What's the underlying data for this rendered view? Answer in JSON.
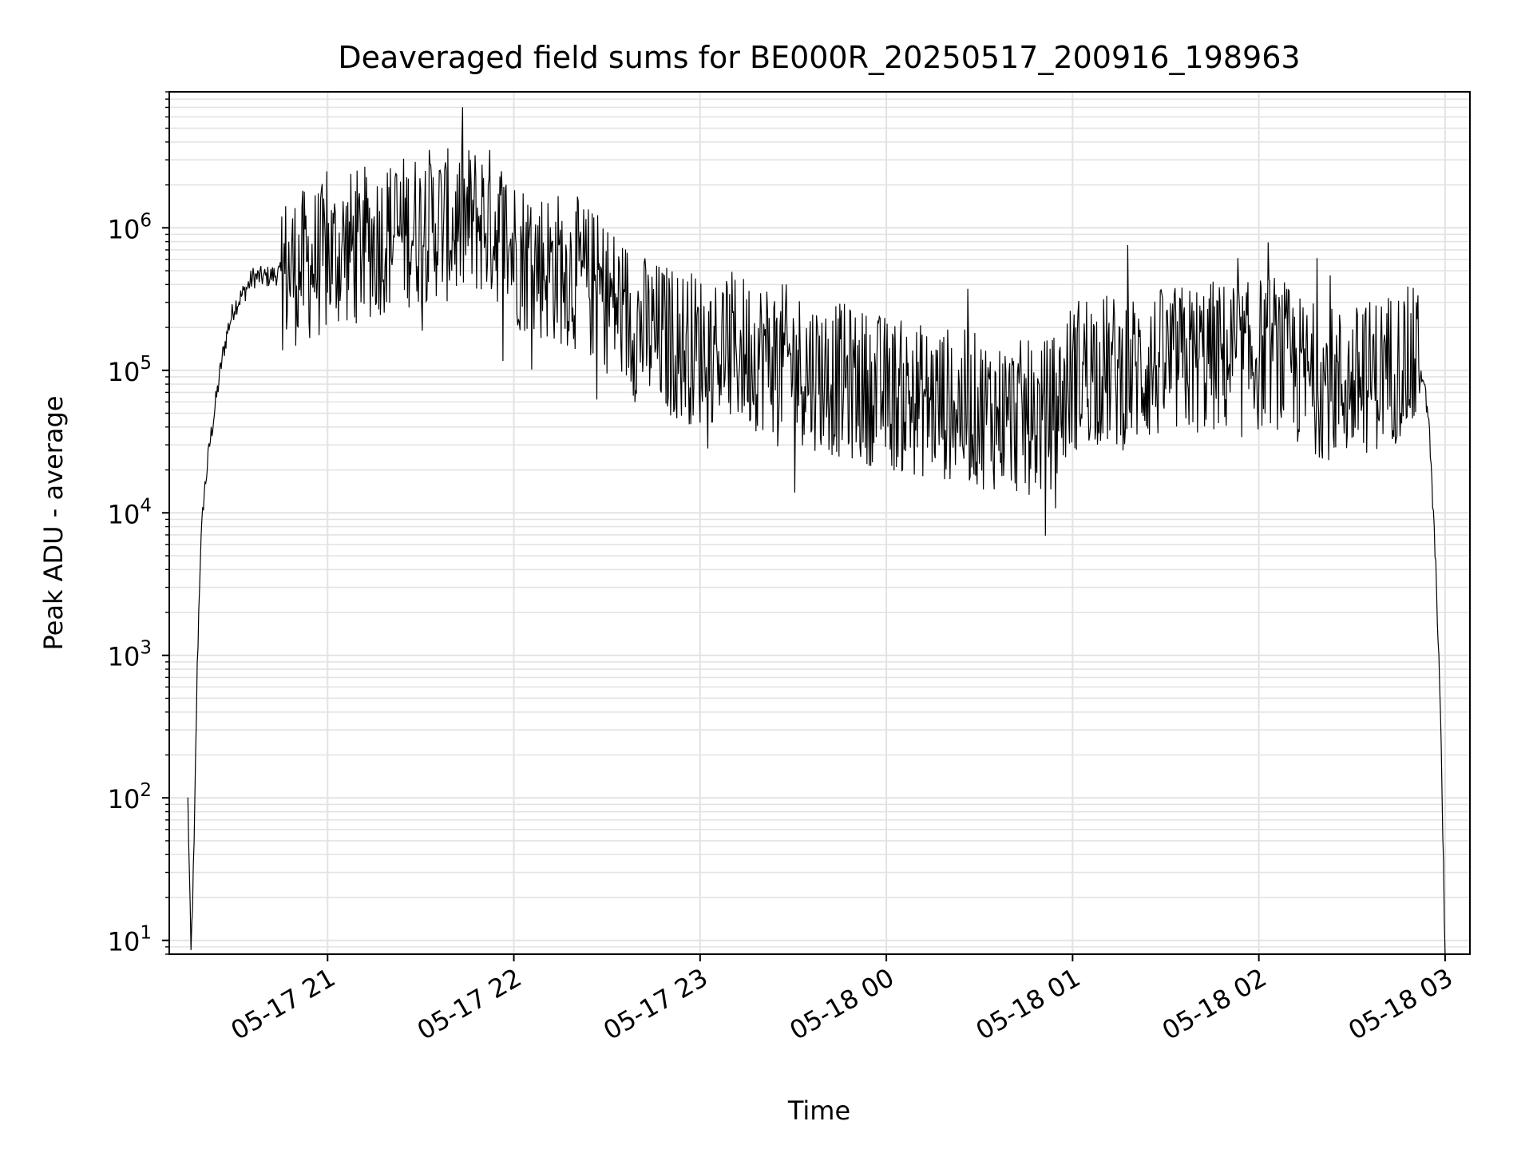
{
  "chart_data": {
    "type": "line",
    "title": "Deaveraged field sums for BE000R_20250517_200916_198963",
    "xlabel": "Time",
    "ylabel": "Peak ADU - average",
    "yscale": "log",
    "ylim": [
      8,
      9000000
    ],
    "xlim": [
      "2025-05-17 20:09",
      "2025-05-18 03:08"
    ],
    "grid": true,
    "grid_minor": true,
    "line_color": "#000000",
    "x_ticks": [
      {
        "value": "2025-05-17 21:00",
        "label": "05-17 21"
      },
      {
        "value": "2025-05-17 22:00",
        "label": "05-17 22"
      },
      {
        "value": "2025-05-17 23:00",
        "label": "05-17 23"
      },
      {
        "value": "2025-05-18 00:00",
        "label": "05-18 00"
      },
      {
        "value": "2025-05-18 01:00",
        "label": "05-18 01"
      },
      {
        "value": "2025-05-18 02:00",
        "label": "05-18 02"
      },
      {
        "value": "2025-05-18 03:00",
        "label": "05-18 03"
      }
    ],
    "y_ticks": [
      {
        "value": 10,
        "base": "10",
        "exp": "1"
      },
      {
        "value": 100,
        "base": "10",
        "exp": "2"
      },
      {
        "value": 1000,
        "base": "10",
        "exp": "3"
      },
      {
        "value": 10000,
        "base": "10",
        "exp": "4"
      },
      {
        "value": 100000,
        "base": "10",
        "exp": "5"
      },
      {
        "value": 1000000,
        "base": "10",
        "exp": "6"
      }
    ],
    "series": [
      {
        "x": [
          "2025-05-17 20:15",
          "2025-05-17 20:16",
          "2025-05-17 20:17",
          "2025-05-17 20:18",
          "2025-05-17 20:19",
          "2025-05-17 20:20",
          "2025-05-17 20:22",
          "2025-05-17 20:24",
          "2025-05-17 20:26",
          "2025-05-17 20:28",
          "2025-05-17 20:30",
          "2025-05-17 20:33",
          "2025-05-17 20:36",
          "2025-05-17 20:40",
          "2025-05-17 20:45",
          "2025-05-17 20:50",
          "2025-05-17 20:55",
          "2025-05-17 21:00",
          "2025-05-17 21:05",
          "2025-05-17 21:10",
          "2025-05-17 21:15",
          "2025-05-17 21:20",
          "2025-05-17 21:25",
          "2025-05-17 21:30",
          "2025-05-17 21:35",
          "2025-05-17 21:40",
          "2025-05-17 21:45",
          "2025-05-17 21:50",
          "2025-05-17 21:55",
          "2025-05-17 22:00",
          "2025-05-17 22:05",
          "2025-05-17 22:10",
          "2025-05-17 22:15",
          "2025-05-17 22:20",
          "2025-05-17 22:25",
          "2025-05-17 22:30",
          "2025-05-17 22:35",
          "2025-05-17 22:40",
          "2025-05-17 22:45",
          "2025-05-17 22:50",
          "2025-05-17 22:55",
          "2025-05-17 23:00",
          "2025-05-17 23:05",
          "2025-05-17 23:10",
          "2025-05-17 23:15",
          "2025-05-17 23:20",
          "2025-05-17 23:25",
          "2025-05-17 23:30",
          "2025-05-17 23:35",
          "2025-05-17 23:40",
          "2025-05-17 23:45",
          "2025-05-17 23:50",
          "2025-05-17 23:55",
          "2025-05-18 00:00",
          "2025-05-18 00:05",
          "2025-05-18 00:10",
          "2025-05-18 00:15",
          "2025-05-18 00:20",
          "2025-05-18 00:25",
          "2025-05-18 00:30",
          "2025-05-18 00:35",
          "2025-05-18 00:40",
          "2025-05-18 00:45",
          "2025-05-18 00:50",
          "2025-05-18 00:55",
          "2025-05-18 01:00",
          "2025-05-18 01:05",
          "2025-05-18 01:10",
          "2025-05-18 01:15",
          "2025-05-18 01:20",
          "2025-05-18 01:25",
          "2025-05-18 01:30",
          "2025-05-18 01:35",
          "2025-05-18 01:40",
          "2025-05-18 01:45",
          "2025-05-18 01:50",
          "2025-05-18 01:55",
          "2025-05-18 02:00",
          "2025-05-18 02:05",
          "2025-05-18 02:10",
          "2025-05-18 02:15",
          "2025-05-18 02:20",
          "2025-05-18 02:25",
          "2025-05-18 02:30",
          "2025-05-18 02:35",
          "2025-05-18 02:40",
          "2025-05-18 02:45",
          "2025-05-18 02:48",
          "2025-05-18 02:51",
          "2025-05-18 02:53",
          "2025-05-18 02:55",
          "2025-05-18 02:56",
          "2025-05-18 02:57",
          "2025-05-18 02:58",
          "2025-05-18 02:59",
          "2025-05-18 03:00"
        ],
        "y": [
          95,
          8,
          45,
          800,
          5000,
          12000,
          30000,
          60000,
          120000,
          200000,
          280000,
          350000,
          450000,
          450000,
          480000,
          520000,
          560000,
          600000,
          700000,
          750000,
          800000,
          900000,
          950000,
          1000000,
          1100000,
          1000000,
          1100000,
          1150000,
          1000000,
          700000,
          600000,
          550000,
          520000,
          480000,
          400000,
          330000,
          260000,
          200000,
          170000,
          160000,
          150000,
          140000,
          150000,
          140000,
          135000,
          130000,
          120000,
          110000,
          100000,
          90000,
          85000,
          80000,
          75000,
          70000,
          65000,
          62000,
          60000,
          58000,
          55000,
          52000,
          50000,
          48000,
          46000,
          45000,
          55000,
          90000,
          110000,
          100000,
          95000,
          100000,
          105000,
          110000,
          115000,
          120000,
          125000,
          120000,
          115000,
          130000,
          140000,
          110000,
          90000,
          85000,
          80000,
          80000,
          90000,
          100000,
          110000,
          110000,
          110000,
          90000,
          35000,
          12000,
          4000,
          1000,
          120,
          8
        ]
      }
    ]
  }
}
